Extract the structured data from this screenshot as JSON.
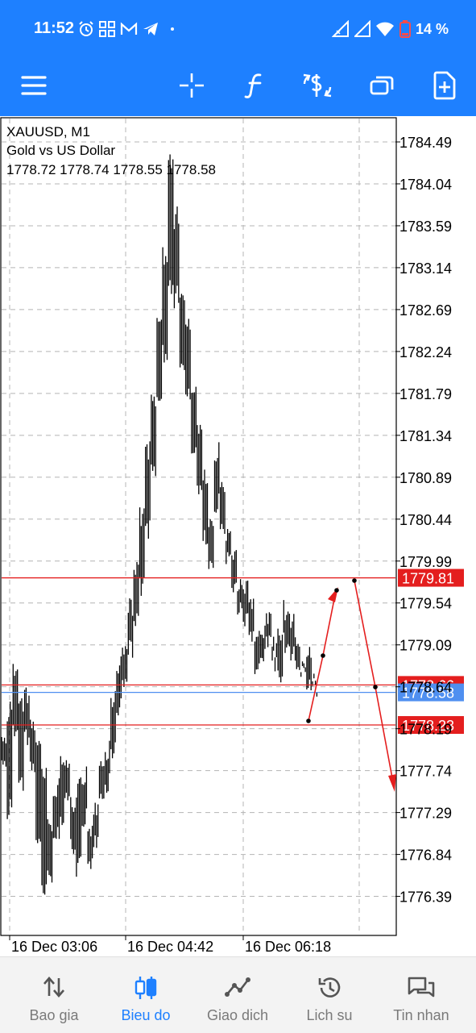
{
  "status_bar": {
    "time": "11:52",
    "battery_percent": "14 %",
    "left_icons": [
      "alarm-icon",
      "grid-icon",
      "gmail-icon",
      "telegram-icon",
      "dot-icon"
    ],
    "right_icons": [
      "signal-icon",
      "signal-icon",
      "wifi-icon",
      "battery-icon"
    ]
  },
  "toolbar": {
    "icons": [
      "menu-icon",
      "crosshair-icon",
      "indicator-f-icon",
      "trade-dollar-icon",
      "windows-icon",
      "new-order-icon"
    ]
  },
  "chart": {
    "symbol_line": "XAUUSD, M1",
    "description": "Gold vs US Dollar",
    "ohlc_line": "1778.72 1778.74 1778.55 1778.58",
    "price_labels": [
      "1784.49",
      "1784.04",
      "1783.59",
      "1783.14",
      "1782.69",
      "1782.24",
      "1781.79",
      "1781.34",
      "1780.89",
      "1780.44",
      "1779.99",
      "1779.54",
      "1779.09",
      "1778.64",
      "1778.19",
      "1777.74",
      "1777.29",
      "1776.84",
      "1776.39"
    ],
    "time_labels": [
      "16 Dec 03:06",
      "16 Dec 04:42",
      "16 Dec 06:18"
    ],
    "level_lines": [
      {
        "price": 1779.81,
        "label": "1779.81",
        "color": "#e41e1e"
      },
      {
        "price": 1778.66,
        "label": "1778.66",
        "color": "#e41e1e"
      },
      {
        "price": 1778.23,
        "label": "1778.23",
        "color": "#e41e1e"
      }
    ],
    "bid_line": {
      "price": 1778.58,
      "label": "1778.58",
      "color": "#4f8ff0"
    },
    "colors": {
      "grid": "#b4b4b4",
      "candles": "#000000",
      "levels": "#e41e1e",
      "bid": "#4f8ff0",
      "text": "#000000"
    }
  },
  "bottom_nav": {
    "items": [
      {
        "label": "Bao gia",
        "icon": "quotes-arrows-icon"
      },
      {
        "label": "Bieu do",
        "icon": "chart-candles-icon"
      },
      {
        "label": "Giao dich",
        "icon": "trade-line-icon"
      },
      {
        "label": "Lich su",
        "icon": "history-clock-icon"
      },
      {
        "label": "Tin nhan",
        "icon": "messages-icon"
      }
    ],
    "active_index": 1,
    "active_color": "#1e80ff",
    "inactive_color": "#7a7a7a"
  }
}
